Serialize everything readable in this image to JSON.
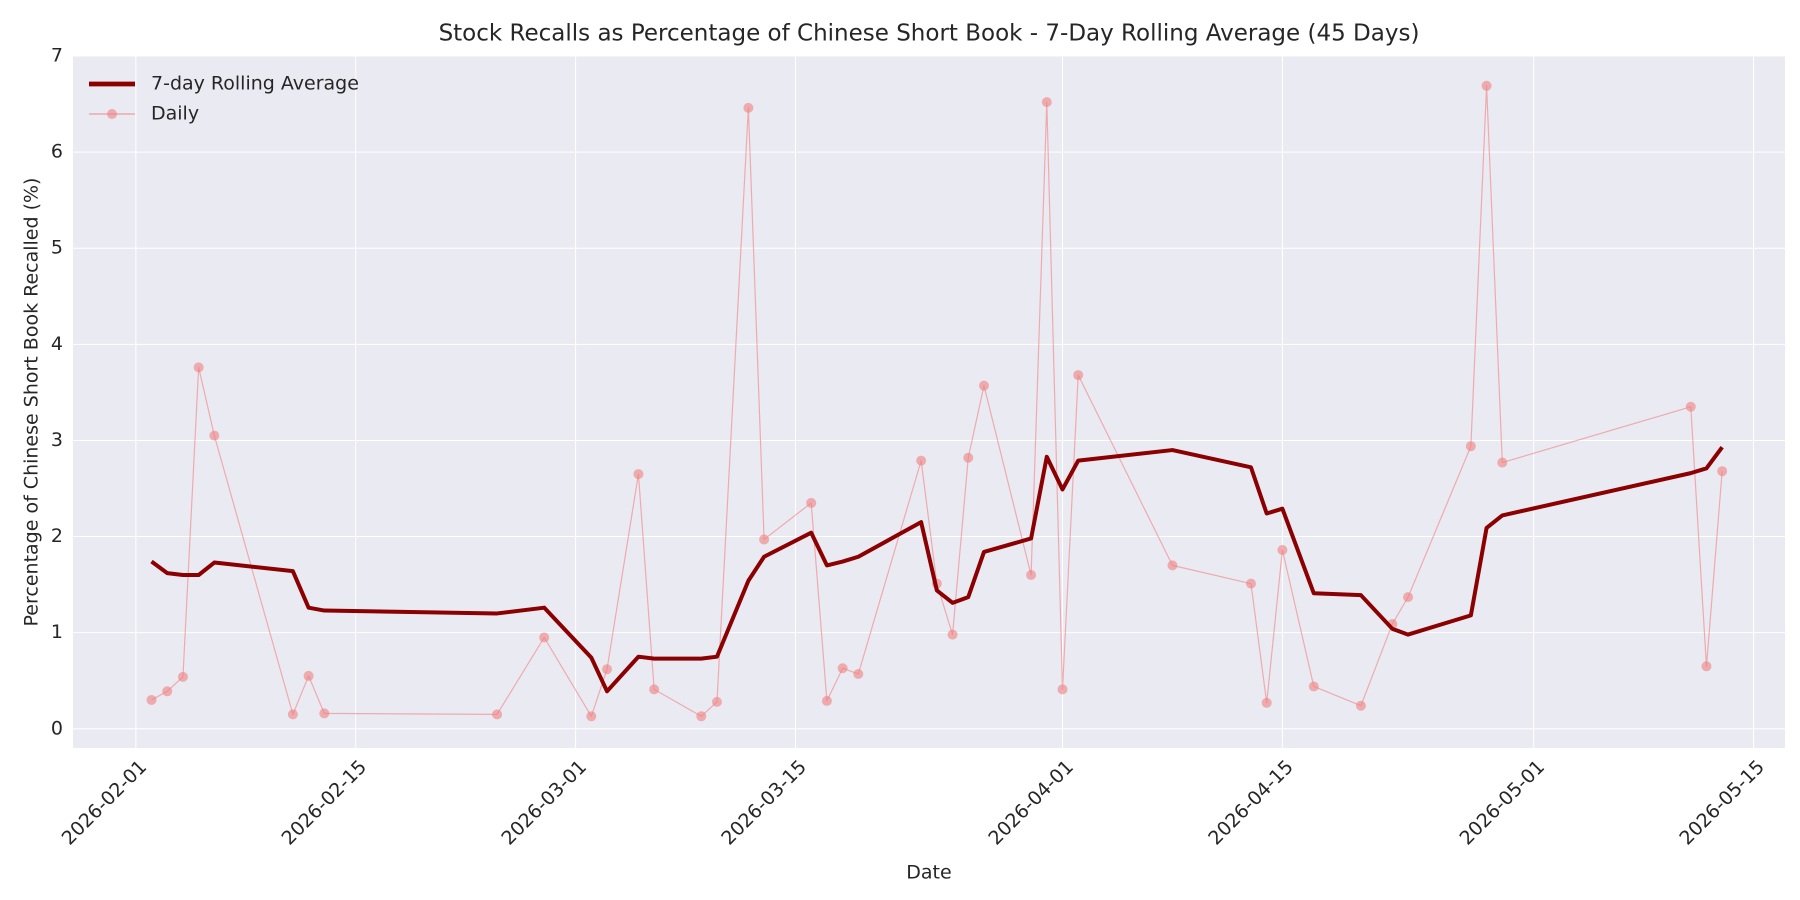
{
  "chart_data": {
    "type": "line",
    "title": "Stock Recalls as Percentage of Chinese Short Book - 7-Day Rolling Average (45 Days)",
    "x_label": "Date",
    "y_label": "Percentage of Chinese Short Book Recalled (%)",
    "x": [
      "2026-02-02",
      "2026-02-03",
      "2026-02-04",
      "2026-02-05",
      "2026-02-06",
      "2026-02-11",
      "2026-02-12",
      "2026-02-13",
      "2026-02-24",
      "2026-02-27",
      "2026-03-02",
      "2026-03-03",
      "2026-03-05",
      "2026-03-06",
      "2026-03-09",
      "2026-03-10",
      "2026-03-12",
      "2026-03-13",
      "2026-03-16",
      "2026-03-17",
      "2026-03-18",
      "2026-03-19",
      "2026-03-23",
      "2026-03-24",
      "2026-03-25",
      "2026-03-26",
      "2026-03-27",
      "2026-03-30",
      "2026-03-31",
      "2026-04-01",
      "2026-04-02",
      "2026-04-08",
      "2026-04-13",
      "2026-04-14",
      "2026-04-15",
      "2026-04-17",
      "2026-04-20",
      "2026-04-22",
      "2026-04-23",
      "2026-04-27",
      "2026-04-28",
      "2026-04-29",
      "2026-05-11",
      "2026-05-12",
      "2026-05-13"
    ],
    "series": [
      {
        "name": "7-day Rolling Average",
        "color": "#8b0000",
        "line_width": 4,
        "values": [
          1.74,
          1.62,
          1.6,
          1.6,
          1.73,
          1.64,
          1.26,
          1.23,
          1.2,
          1.26,
          0.74,
          0.39,
          0.75,
          0.73,
          0.73,
          0.75,
          1.54,
          1.79,
          2.04,
          1.7,
          1.74,
          1.79,
          2.15,
          1.44,
          1.31,
          1.37,
          1.84,
          1.98,
          2.83,
          2.49,
          2.79,
          2.9,
          2.72,
          2.24,
          2.29,
          1.41,
          1.39,
          1.04,
          0.98,
          1.18,
          2.09,
          2.22,
          2.66,
          2.71,
          2.93
        ]
      },
      {
        "name": "Daily",
        "color": "#f08080",
        "line_width": 1.2,
        "marker": "o",
        "alpha": 0.6,
        "values": [
          0.3,
          0.39,
          0.54,
          3.76,
          3.05,
          0.15,
          0.55,
          0.16,
          0.15,
          0.95,
          0.13,
          0.62,
          2.65,
          0.41,
          0.13,
          0.28,
          6.46,
          1.97,
          2.35,
          0.29,
          0.63,
          0.57,
          2.79,
          1.51,
          0.98,
          2.82,
          3.57,
          1.6,
          6.52,
          0.41,
          3.68,
          1.7,
          1.51,
          0.27,
          1.86,
          0.44,
          0.24,
          1.09,
          1.37,
          2.94,
          6.69,
          2.77,
          3.35,
          0.65,
          2.68
        ]
      }
    ],
    "xlim": [
      "2026-01-28",
      "2026-05-17"
    ],
    "xticks": [
      "2026-02-01",
      "2026-02-15",
      "2026-03-01",
      "2026-03-15",
      "2026-04-01",
      "2026-04-15",
      "2026-05-01",
      "2026-05-15"
    ],
    "ylim": [
      -0.2,
      7
    ],
    "yticks": [
      0,
      1,
      2,
      3,
      4,
      5,
      6,
      7
    ],
    "grid": true,
    "legend": "upper left"
  }
}
